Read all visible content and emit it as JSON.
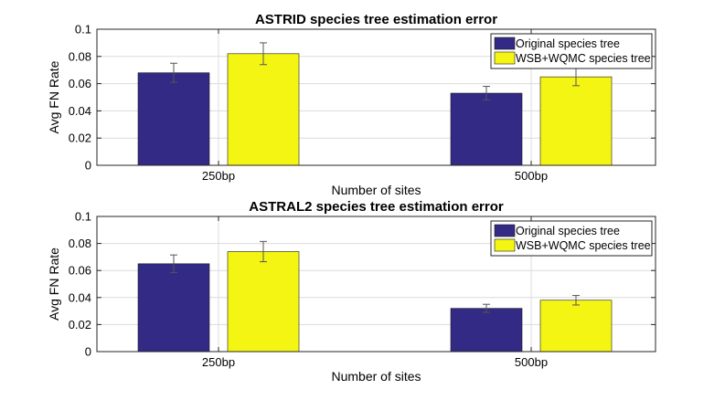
{
  "colors": {
    "series": [
      "#332a85",
      "#f5f514"
    ],
    "axis": "#262626",
    "grid": "#dcdcdc",
    "error_bar": "#555555"
  },
  "chart_data": [
    {
      "type": "bar",
      "title": "ASTRID species tree estimation error",
      "xlabel": "Number of sites",
      "ylabel": "Avg FN Rate",
      "ylim": [
        0,
        0.1
      ],
      "yticks": [
        "0",
        "0.02",
        "0.04",
        "0.06",
        "0.08",
        "0.1"
      ],
      "categories": [
        "250bp",
        "500bp"
      ],
      "series": [
        {
          "name": "Original species tree",
          "values": [
            0.068,
            0.053
          ],
          "errors": [
            0.007,
            0.005
          ]
        },
        {
          "name": "WSB+WQMC species tree",
          "values": [
            0.082,
            0.065
          ],
          "errors": [
            0.008,
            0.0065
          ]
        }
      ],
      "legend": "top-right",
      "grid": true
    },
    {
      "type": "bar",
      "title": "ASTRAL2 species tree estimation error",
      "xlabel": "Number of sites",
      "ylabel": "Avg FN Rate",
      "ylim": [
        0,
        0.1
      ],
      "yticks": [
        "0",
        "0.02",
        "0.04",
        "0.06",
        "0.08",
        "0.1"
      ],
      "categories": [
        "250bp",
        "500bp"
      ],
      "series": [
        {
          "name": "Original species tree",
          "values": [
            0.065,
            0.032
          ],
          "errors": [
            0.0065,
            0.003
          ]
        },
        {
          "name": "WSB+WQMC species tree",
          "values": [
            0.074,
            0.038
          ],
          "errors": [
            0.0075,
            0.0035
          ]
        }
      ],
      "legend": "top-right",
      "grid": true
    }
  ]
}
